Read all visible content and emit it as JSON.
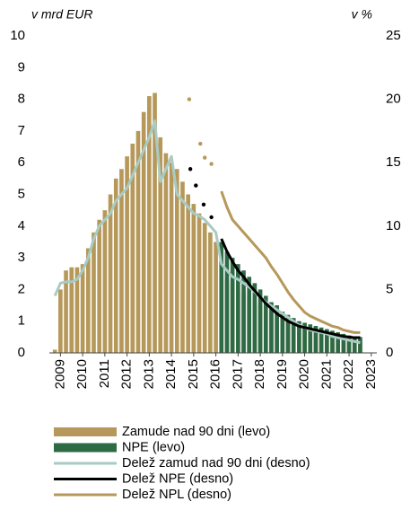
{
  "chart_data": {
    "type": "bar",
    "y_label": "v mrd EUR",
    "y2_label": "v %",
    "xlim": [
      2008.5,
      2023.25
    ],
    "xticks": [
      2009,
      2010,
      2011,
      2012,
      2013,
      2014,
      2015,
      2016,
      2017,
      2018,
      2019,
      2020,
      2021,
      2022,
      2023
    ],
    "ylim": [
      0,
      10
    ],
    "yticks": [
      0,
      1,
      2,
      3,
      4,
      5,
      6,
      7,
      8,
      9,
      10
    ],
    "y2lim": [
      0,
      25
    ],
    "y2ticks": [
      0,
      5,
      10,
      15,
      20,
      25
    ],
    "x": [
      2008.75,
      2009,
      2009.25,
      2009.5,
      2009.75,
      2010,
      2010.25,
      2010.5,
      2010.75,
      2011,
      2011.25,
      2011.5,
      2011.75,
      2012,
      2012.25,
      2012.5,
      2012.75,
      2013,
      2013.25,
      2013.5,
      2013.75,
      2014,
      2014.25,
      2014.5,
      2014.75,
      2015,
      2015.25,
      2015.5,
      2015.75,
      2016,
      2016.25,
      2016.5,
      2016.75,
      2017,
      2017.25,
      2017.5,
      2017.75,
      2018,
      2018.25,
      2018.5,
      2018.75,
      2019,
      2019.25,
      2019.5,
      2019.75,
      2020,
      2020.25,
      2020.5,
      2020.75,
      2021,
      2021.25,
      2021.5,
      2021.75,
      2022,
      2022.25,
      2022.5
    ],
    "series": [
      {
        "name": "Zamude nad 90 dni (levo)",
        "kind": "bar",
        "color": "#b5985a",
        "values": [
          0.1,
          2.0,
          2.6,
          2.7,
          2.7,
          2.8,
          3.3,
          3.8,
          4.2,
          4.5,
          5.0,
          5.5,
          5.8,
          6.2,
          6.6,
          7.0,
          7.6,
          8.1,
          8.2,
          6.8,
          6.3,
          6.0,
          5.8,
          5.4,
          5.0,
          4.7,
          4.4,
          4.1,
          3.8,
          3.5,
          2.4,
          2.3,
          2.2,
          2.0,
          1.9,
          1.8,
          1.6,
          1.5,
          1.4,
          1.3,
          1.2,
          1.1,
          1.0,
          0.9,
          0.8,
          0.75,
          0.7,
          0.65,
          0.6,
          0.55,
          0.5,
          0.45,
          0.4,
          0.4,
          0.35,
          0.35
        ]
      },
      {
        "name": "NPE (levo)",
        "kind": "bar",
        "color": "#2e6b45",
        "values": [
          null,
          null,
          null,
          null,
          null,
          null,
          null,
          null,
          null,
          null,
          null,
          null,
          null,
          null,
          null,
          null,
          null,
          null,
          null,
          null,
          null,
          null,
          null,
          null,
          null,
          null,
          null,
          null,
          null,
          null,
          3.5,
          3.2,
          3.0,
          2.8,
          2.6,
          2.4,
          2.2,
          2.0,
          1.8,
          1.6,
          1.5,
          1.3,
          1.2,
          1.1,
          1.0,
          0.95,
          0.9,
          0.85,
          0.8,
          0.75,
          0.7,
          0.65,
          0.6,
          0.55,
          0.5,
          0.5
        ]
      },
      {
        "name": "Delež zamud nad 90 dni (desno)",
        "kind": "line",
        "axis": "y2",
        "color": "#a9cbc3",
        "values": [
          4.5,
          5.5,
          5.6,
          5.6,
          5.8,
          6.5,
          7.5,
          9,
          10,
          10.5,
          11,
          12,
          12.5,
          13,
          14,
          15,
          16,
          17,
          18.3,
          13.5,
          14.5,
          15.5,
          12.5,
          12,
          11.5,
          11,
          10.8,
          10.5,
          10,
          9.5,
          7,
          6.5,
          6,
          5.8,
          5.5,
          5.2,
          4.8,
          4.4,
          4,
          3.7,
          3.4,
          3.1,
          2.8,
          2.5,
          2.2,
          2.0,
          1.8,
          1.7,
          1.6,
          1.5,
          1.3,
          1.2,
          1.1,
          1.0,
          0.9,
          0.8
        ]
      },
      {
        "name": "Delež NPE (desno)",
        "kind": "line",
        "axis": "y2",
        "color": "#000000",
        "values": [
          null,
          null,
          null,
          null,
          null,
          null,
          null,
          null,
          null,
          null,
          null,
          null,
          null,
          null,
          null,
          null,
          null,
          null,
          null,
          null,
          null,
          null,
          null,
          null,
          null,
          null,
          null,
          null,
          null,
          null,
          9,
          8,
          7.2,
          6.5,
          6,
          5.4,
          4.9,
          4.4,
          3.9,
          3.5,
          3.1,
          2.8,
          2.5,
          2.3,
          2.1,
          2.0,
          1.9,
          1.8,
          1.7,
          1.6,
          1.5,
          1.4,
          1.3,
          1.25,
          1.2,
          1.2
        ],
        "dots_x": [
          2014.85,
          2015.1,
          2015.45,
          2015.8
        ],
        "dots_values": [
          14.5,
          13.2,
          11.7,
          10.7
        ]
      },
      {
        "name": "Delež NPL (desno)",
        "kind": "line",
        "axis": "y2",
        "color": "#b5985a",
        "values": [
          null,
          null,
          null,
          null,
          null,
          null,
          null,
          null,
          null,
          null,
          null,
          null,
          null,
          null,
          null,
          null,
          null,
          null,
          null,
          null,
          null,
          null,
          null,
          null,
          null,
          null,
          null,
          null,
          null,
          null,
          12.75,
          11.5,
          10.5,
          10,
          9.5,
          9,
          8.5,
          8,
          7.5,
          6.8,
          6.2,
          5.5,
          4.8,
          4.2,
          3.7,
          3.2,
          2.9,
          2.7,
          2.5,
          2.3,
          2.1,
          2.0,
          1.8,
          1.7,
          1.6,
          1.6
        ],
        "dots_x": [
          2014.8,
          2015.3,
          2015.5,
          2015.8
        ],
        "dots_values": [
          20,
          16.5,
          15.4,
          14.9
        ]
      }
    ]
  }
}
